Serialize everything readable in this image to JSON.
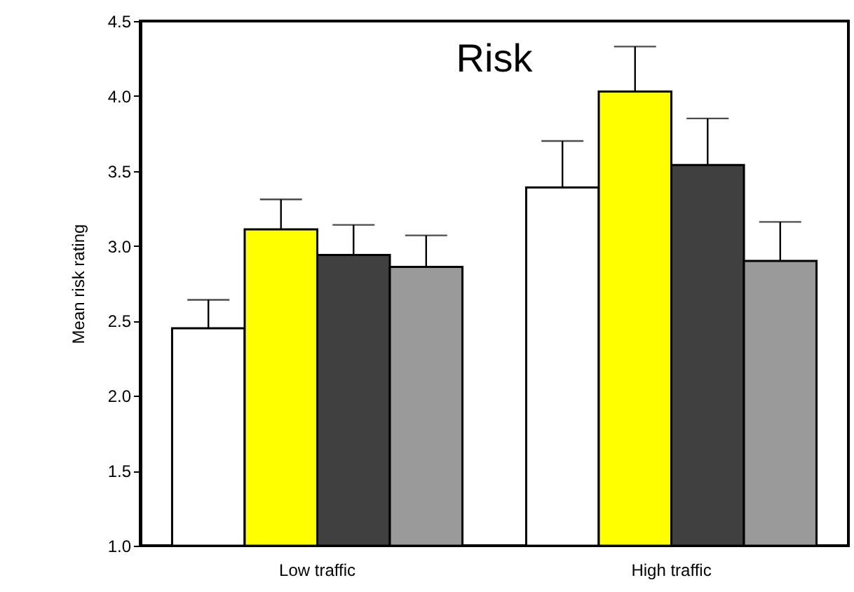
{
  "chart_data": {
    "type": "bar",
    "title": "Risk",
    "ylabel": "Mean risk rating",
    "categories": [
      "Low traffic",
      "High traffic"
    ],
    "series": [
      {
        "color": "#ffffff",
        "values": [
          2.45,
          3.39
        ],
        "errors": [
          [
            2.45,
            2.64
          ],
          [
            3.39,
            3.7
          ]
        ]
      },
      {
        "color": "#ffff00",
        "values": [
          3.11,
          4.03
        ],
        "errors": [
          [
            3.11,
            3.31
          ],
          [
            4.03,
            4.33
          ]
        ]
      },
      {
        "color": "#404040",
        "values": [
          2.94,
          3.54
        ],
        "errors": [
          [
            2.94,
            3.14
          ],
          [
            3.54,
            3.85
          ]
        ]
      },
      {
        "color": "#9a9a9a",
        "values": [
          2.86,
          2.9
        ],
        "errors": [
          [
            2.86,
            3.07
          ],
          [
            2.9,
            3.16
          ]
        ]
      }
    ],
    "ylim": [
      1.0,
      4.5
    ],
    "yticks": [
      {
        "value": 1.0,
        "label": "1.0"
      },
      {
        "value": 1.5,
        "label": "1.5"
      },
      {
        "value": 2.0,
        "label": "2.0"
      },
      {
        "value": 2.5,
        "label": "2.5"
      },
      {
        "value": 3.0,
        "label": "3.0"
      },
      {
        "value": 3.5,
        "label": "3.5"
      },
      {
        "value": 4.0,
        "label": "4.0"
      },
      {
        "value": 4.5,
        "label": "4.5"
      }
    ],
    "grid": false,
    "legend": false
  }
}
